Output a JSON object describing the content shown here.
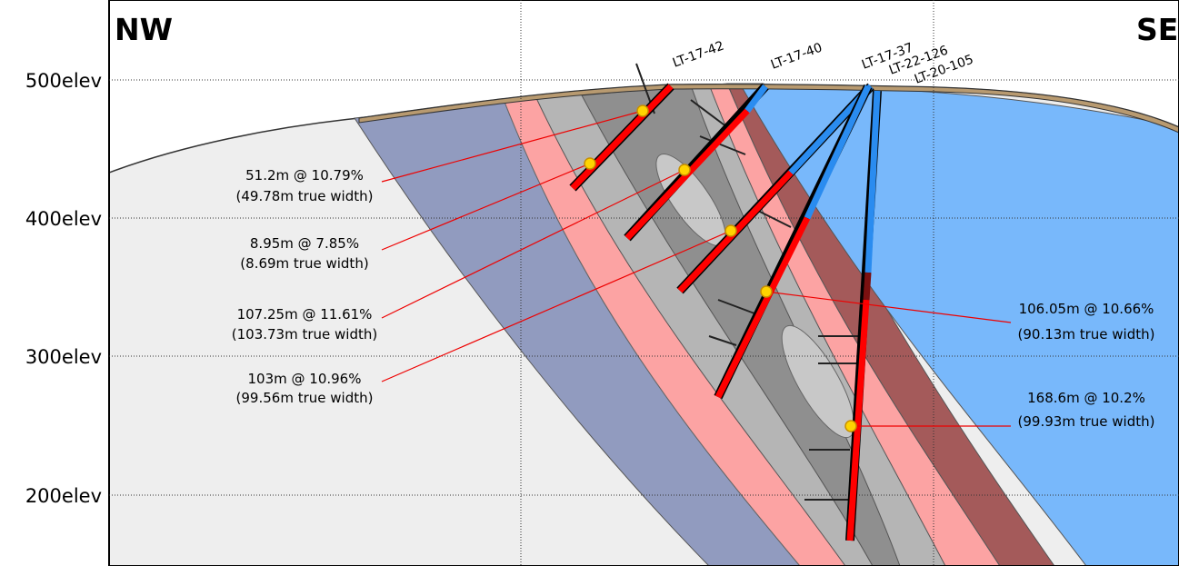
{
  "orientation": {
    "left": "NW",
    "right": "SE"
  },
  "elevations": [
    "500elev",
    "400elev",
    "300elev",
    "200elev"
  ],
  "drill_holes": [
    "LT-17-42",
    "LT-17-40",
    "LT-17-37",
    "LT-22-126",
    "LT-20-105"
  ],
  "intercepts": [
    {
      "grade": "51.2m @ 10.79%",
      "width": "(49.78m true width)"
    },
    {
      "grade": "8.95m @ 7.85%",
      "width": "(8.69m true width)"
    },
    {
      "grade": "107.25m @ 11.61%",
      "width": "(103.73m true width)"
    },
    {
      "grade": "103m @ 10.96%",
      "width": "(99.56m true width)"
    },
    {
      "grade": "106.05m @ 10.66%",
      "width": "(90.13m true width)"
    },
    {
      "grade": "168.6m @ 10.2%",
      "width": "(99.93m true width)"
    }
  ]
}
